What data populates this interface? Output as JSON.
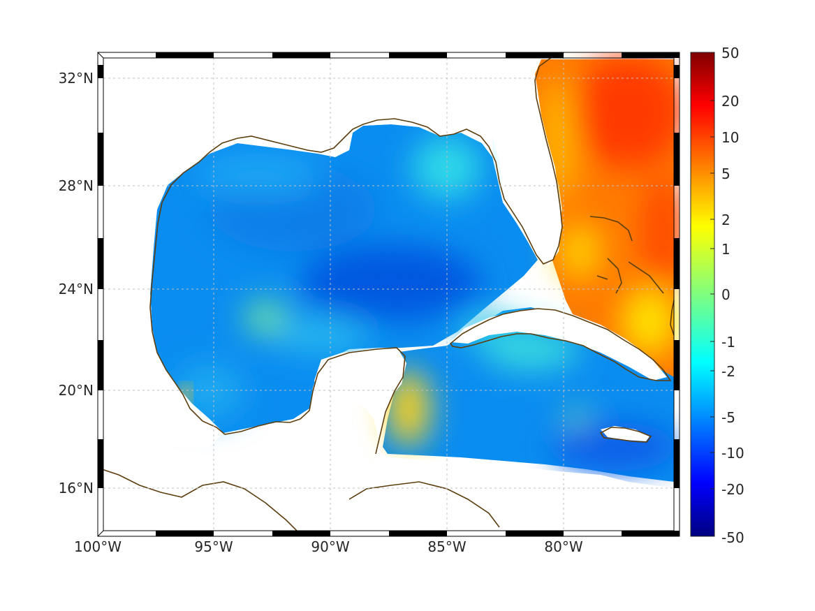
{
  "map": {
    "longitude_ticks": [
      "100°W",
      "95°W",
      "90°W",
      "85°W",
      "80°W"
    ],
    "latitude_ticks": [
      "32°N",
      "28°N",
      "24°N",
      "20°N",
      "16°N"
    ],
    "extent": {
      "lon_min": -100,
      "lon_max": -75.2,
      "lat_min": 14.2,
      "lat_max": 33.0
    },
    "grid": true,
    "coastline_color": "#5c3d0e",
    "land_color": "#ffffff",
    "field_regions": [
      {
        "name": "gulf-of-mexico-interior",
        "level": "-5"
      },
      {
        "name": "atlantic-east-of-florida",
        "level": "10"
      },
      {
        "name": "yucatan-channel",
        "level": "2"
      },
      {
        "name": "caribbean-south",
        "level": "-5"
      }
    ]
  },
  "colorbar": {
    "tick_labels": [
      "50",
      "20",
      "10",
      "5",
      "2",
      "1",
      "0",
      "-1",
      "-2",
      "-5",
      "-10",
      "-20",
      "-50"
    ],
    "colormap": "jet",
    "colors": [
      "#000080",
      "#0000ff",
      "#0080ff",
      "#00ffff",
      "#80ff80",
      "#ffff00",
      "#ff8000",
      "#ff0000",
      "#800000"
    ]
  }
}
